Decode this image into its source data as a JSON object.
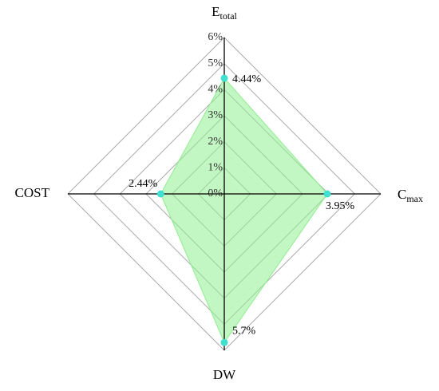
{
  "chart_data": {
    "type": "radar",
    "categories": [
      "E",
      "C",
      "DW",
      "COST"
    ],
    "category_subscripts": [
      "total",
      "max",
      null,
      null
    ],
    "values": [
      4.44,
      3.95,
      5.7,
      2.44
    ],
    "value_labels": [
      "4.44%",
      "3.95%",
      "5.7%",
      "2.44%"
    ],
    "ylim": [
      0,
      6
    ],
    "yticks": [
      {
        "value": 0,
        "label": "0%"
      },
      {
        "value": 1,
        "label": "1%"
      },
      {
        "value": 2,
        "label": "2%"
      },
      {
        "value": 3,
        "label": "3%"
      },
      {
        "value": 4,
        "label": "4%"
      },
      {
        "value": 5,
        "label": "5%"
      },
      {
        "value": 6,
        "label": "6%"
      }
    ],
    "color": "#90ee90",
    "marker_color": "#40e0d0",
    "grid": true
  }
}
